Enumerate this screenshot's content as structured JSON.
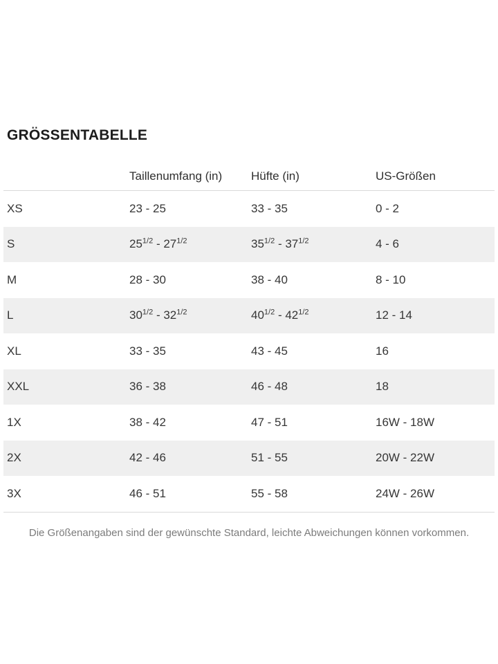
{
  "title": "GRÖSSENTABELLE",
  "footnote": "Die Größenangaben sind der gewünschte Standard, leichte Abweichungen können vorkommen.",
  "colors": {
    "stripe_background": "#efefef",
    "divider": "#d9d9d9",
    "body_text": "#363636",
    "footnote_text": "#7b7b7b"
  },
  "chart_data": {
    "type": "table",
    "title": "GRÖSSENTABELLE",
    "columns": [
      "",
      "Taillenumfang (in)",
      "Hüfte (in)",
      "US-Größen"
    ],
    "rows": [
      {
        "size": "XS",
        "waist": "23 - 25",
        "hip": "33 - 35",
        "us": "0 - 2"
      },
      {
        "size": "S",
        "waist": "25^{1/2} - 27^{1/2}",
        "hip": "35^{1/2} - 37^{1/2}",
        "us": "4 - 6"
      },
      {
        "size": "M",
        "waist": "28 - 30",
        "hip": "38 - 40",
        "us": "8 - 10"
      },
      {
        "size": "L",
        "waist": "30^{1/2} - 32^{1/2}",
        "hip": "40^{1/2} - 42^{1/2}",
        "us": "12 - 14"
      },
      {
        "size": "XL",
        "waist": "33 - 35",
        "hip": "43 - 45",
        "us": "16"
      },
      {
        "size": "XXL",
        "waist": "36 - 38",
        "hip": "46 - 48",
        "us": "18"
      },
      {
        "size": "1X",
        "waist": "38 - 42",
        "hip": "47 - 51",
        "us": "16W - 18W"
      },
      {
        "size": "2X",
        "waist": "42 - 46",
        "hip": "51 - 55",
        "us": "20W - 22W"
      },
      {
        "size": "3X",
        "waist": "46 - 51",
        "hip": "55 - 58",
        "us": "24W - 26W"
      }
    ]
  }
}
